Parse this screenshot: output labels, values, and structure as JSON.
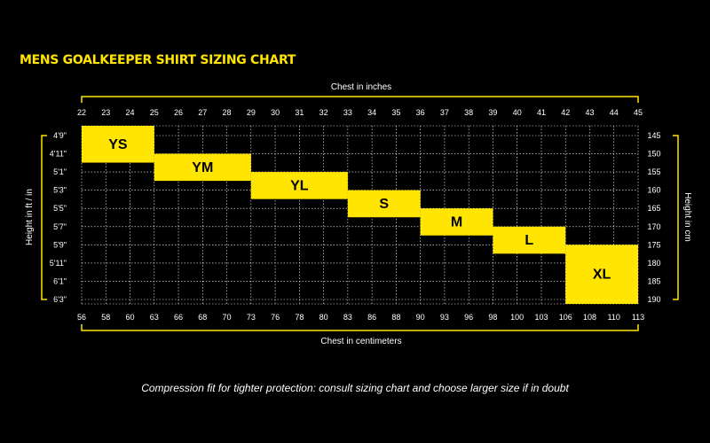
{
  "title": "MENS GOALKEEPER SHIRT SIZING CHART",
  "footnote": "Compression fit for tighter protection: consult sizing chart and choose larger size if in doubt",
  "colors": {
    "accent": "#ffe500",
    "background": "#000000",
    "grid": "#ffffff"
  },
  "chart_data": {
    "type": "table",
    "top_axis_label": "Chest in inches",
    "bottom_axis_label": "Chest in centimeters",
    "left_axis_label": "Height in ft / in",
    "right_axis_label": "Height in cm",
    "chest_in": [
      "22",
      "23",
      "24",
      "25",
      "26",
      "27",
      "28",
      "29",
      "30",
      "31",
      "32",
      "33",
      "34",
      "35",
      "36",
      "37",
      "38",
      "39",
      "40",
      "41",
      "42",
      "43",
      "44",
      "45"
    ],
    "chest_cm": [
      "56",
      "58",
      "60",
      "63",
      "66",
      "68",
      "70",
      "73",
      "76",
      "78",
      "80",
      "83",
      "86",
      "88",
      "90",
      "93",
      "96",
      "98",
      "100",
      "103",
      "106",
      "108",
      "110",
      "113"
    ],
    "height_ftin": [
      "4'9\"",
      "4'11\"",
      "5'1\"",
      "5'3\"",
      "5'5\"",
      "5'7\"",
      "5'9\"",
      "5'11\"",
      "6'1\"",
      "6'3\""
    ],
    "height_cm": [
      "145",
      "150",
      "155",
      "160",
      "165",
      "170",
      "175",
      "180",
      "185",
      "190"
    ],
    "sizes": [
      {
        "label": "YS",
        "chest_in": [
          22,
          25
        ],
        "height_cm": [
          145,
          150
        ]
      },
      {
        "label": "YM",
        "chest_in": [
          25,
          29
        ],
        "height_cm": [
          150,
          155
        ]
      },
      {
        "label": "YL",
        "chest_in": [
          29,
          33
        ],
        "height_cm": [
          155,
          160
        ]
      },
      {
        "label": "S",
        "chest_in": [
          33,
          36
        ],
        "height_cm": [
          160,
          165
        ]
      },
      {
        "label": "M",
        "chest_in": [
          36,
          39
        ],
        "height_cm": [
          165,
          170
        ]
      },
      {
        "label": "L",
        "chest_in": [
          39,
          42
        ],
        "height_cm": [
          170,
          175
        ]
      },
      {
        "label": "XL",
        "chest_in": [
          42,
          45
        ],
        "height_cm": [
          175,
          190
        ]
      }
    ],
    "grid": true
  }
}
